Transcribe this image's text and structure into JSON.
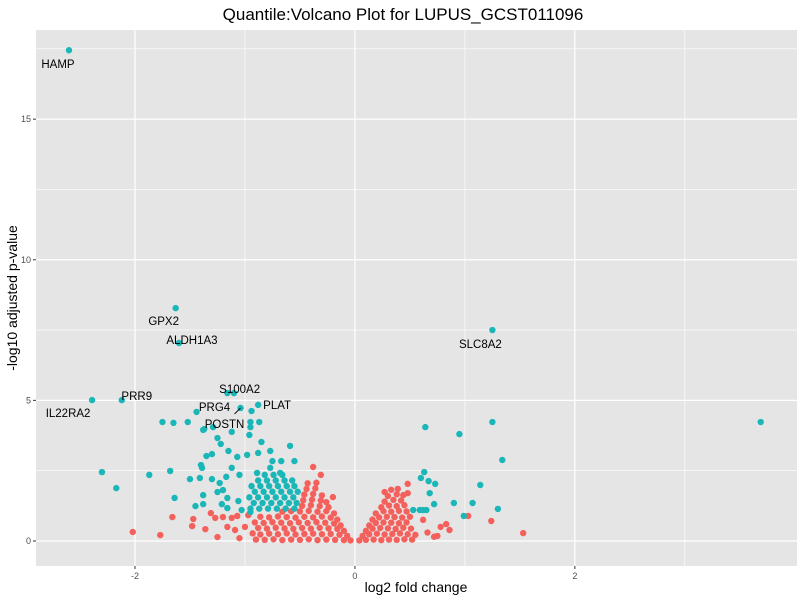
{
  "chart_data": {
    "type": "scatter",
    "title": "Quantile:Volcano Plot for LUPUS_GCST011096",
    "xlabel": "log2 fold change",
    "ylabel": "-log10 adjusted p-value",
    "xlim": [
      -2.9,
      4.02
    ],
    "ylim": [
      -0.89,
      18.17
    ],
    "x_ticks": [
      "-2",
      "0",
      "2"
    ],
    "x_tick_values": [
      -2,
      0,
      2
    ],
    "y_ticks": [
      "0",
      "5",
      "10",
      "15"
    ],
    "y_tick_values": [
      0,
      5,
      10,
      15
    ],
    "grid": true,
    "legend": "none",
    "colors": {
      "not_significant": "#F4615C",
      "significant": "#1BB6B8",
      "panel": "#E5E5E5",
      "grid": "#FFFFFF"
    },
    "series": [
      {
        "color": "#F4615C",
        "points": [
          [
            -0.9,
            0.05
          ],
          [
            -0.82,
            0.04
          ],
          [
            -0.74,
            0.06
          ],
          [
            -0.66,
            0.03
          ],
          [
            -0.58,
            0.05
          ],
          [
            -0.5,
            0.04
          ],
          [
            -0.42,
            0.06
          ],
          [
            -0.34,
            0.03
          ],
          [
            -0.26,
            0.05
          ],
          [
            -0.18,
            0.04
          ],
          [
            -0.1,
            0.03
          ],
          [
            -0.04,
            0.02
          ],
          [
            0.04,
            0.02
          ],
          [
            0.1,
            0.04
          ],
          [
            0.17,
            0.05
          ],
          [
            0.24,
            0.03
          ],
          [
            0.31,
            0.05
          ],
          [
            0.38,
            0.04
          ],
          [
            0.45,
            0.06
          ],
          [
            0.52,
            0.05
          ],
          [
            -0.93,
            0.27
          ],
          [
            -0.86,
            0.23
          ],
          [
            -0.78,
            0.26
          ],
          [
            -0.7,
            0.24
          ],
          [
            -0.62,
            0.27
          ],
          [
            -0.54,
            0.23
          ],
          [
            -0.46,
            0.25
          ],
          [
            -0.38,
            0.26
          ],
          [
            -0.3,
            0.24
          ],
          [
            -0.22,
            0.25
          ],
          [
            -0.14,
            0.22
          ],
          [
            -0.07,
            0.18
          ],
          [
            0.07,
            0.18
          ],
          [
            0.13,
            0.24
          ],
          [
            0.2,
            0.26
          ],
          [
            0.27,
            0.23
          ],
          [
            0.34,
            0.25
          ],
          [
            0.41,
            0.27
          ],
          [
            0.48,
            0.24
          ],
          [
            0.55,
            0.22
          ],
          [
            -0.88,
            0.46
          ],
          [
            -0.8,
            0.44
          ],
          [
            -0.72,
            0.47
          ],
          [
            -0.64,
            0.45
          ],
          [
            -0.56,
            0.43
          ],
          [
            -0.48,
            0.46
          ],
          [
            -0.4,
            0.44
          ],
          [
            -0.32,
            0.47
          ],
          [
            -0.24,
            0.45
          ],
          [
            -0.16,
            0.43
          ],
          [
            -0.1,
            0.36
          ],
          [
            0.1,
            0.36
          ],
          [
            0.16,
            0.44
          ],
          [
            0.23,
            0.46
          ],
          [
            0.3,
            0.45
          ],
          [
            0.37,
            0.43
          ],
          [
            0.44,
            0.47
          ],
          [
            0.51,
            0.44
          ],
          [
            -0.91,
            0.66
          ],
          [
            -0.83,
            0.64
          ],
          [
            -0.75,
            0.67
          ],
          [
            -0.67,
            0.65
          ],
          [
            -0.59,
            0.63
          ],
          [
            -0.51,
            0.66
          ],
          [
            -0.43,
            0.64
          ],
          [
            -0.35,
            0.67
          ],
          [
            -0.27,
            0.65
          ],
          [
            -0.19,
            0.62
          ],
          [
            -0.13,
            0.55
          ],
          [
            0.13,
            0.55
          ],
          [
            0.19,
            0.64
          ],
          [
            0.26,
            0.66
          ],
          [
            0.33,
            0.65
          ],
          [
            0.4,
            0.63
          ],
          [
            0.47,
            0.66
          ],
          [
            -0.86,
            0.86
          ],
          [
            -0.78,
            0.84
          ],
          [
            -0.7,
            0.87
          ],
          [
            -0.62,
            0.85
          ],
          [
            -0.54,
            0.83
          ],
          [
            -0.46,
            0.86
          ],
          [
            -0.38,
            0.84
          ],
          [
            -0.3,
            0.87
          ],
          [
            -0.22,
            0.83
          ],
          [
            -0.16,
            0.76
          ],
          [
            0.16,
            0.76
          ],
          [
            0.22,
            0.84
          ],
          [
            0.29,
            0.86
          ],
          [
            0.36,
            0.85
          ],
          [
            0.43,
            0.83
          ],
          [
            0.5,
            0.86
          ],
          [
            -0.66,
            1.04
          ],
          [
            -0.58,
            1.06
          ],
          [
            -0.5,
            1.05
          ],
          [
            -0.42,
            1.07
          ],
          [
            -0.34,
            1.04
          ],
          [
            -0.26,
            1.06
          ],
          [
            -0.19,
            0.98
          ],
          [
            0.19,
            0.98
          ],
          [
            0.26,
            1.06
          ],
          [
            0.33,
            1.04
          ],
          [
            0.4,
            1.07
          ],
          [
            0.47,
            1.05
          ],
          [
            -0.48,
            1.25
          ],
          [
            -0.4,
            1.27
          ],
          [
            -0.32,
            1.24
          ],
          [
            -0.24,
            1.2
          ],
          [
            0.24,
            1.2
          ],
          [
            0.31,
            1.26
          ],
          [
            0.38,
            1.24
          ],
          [
            0.45,
            1.27
          ],
          [
            -0.47,
            1.45
          ],
          [
            -0.39,
            1.47
          ],
          [
            -0.31,
            1.44
          ],
          [
            -0.26,
            1.38
          ],
          [
            0.27,
            1.4
          ],
          [
            0.35,
            1.46
          ],
          [
            0.42,
            1.44
          ],
          [
            -0.46,
            1.65
          ],
          [
            -0.38,
            1.67
          ],
          [
            -0.3,
            1.62
          ],
          [
            0.3,
            1.6
          ],
          [
            0.38,
            1.66
          ],
          [
            -0.44,
            1.85
          ],
          [
            -0.36,
            1.87
          ],
          [
            0.33,
            1.82
          ],
          [
            -0.43,
            2.05
          ],
          [
            -0.35,
            2.07
          ],
          [
            -0.38,
            2.63
          ],
          [
            -0.31,
            2.35
          ],
          [
            -0.2,
            1.56
          ],
          [
            0.27,
            1.74
          ],
          [
            0.39,
            1.85
          ],
          [
            0.48,
            2.03
          ],
          [
            0.44,
            1.63
          ],
          [
            0.48,
            1.7
          ],
          [
            1.03,
            0.89
          ],
          [
            1.24,
            0.71
          ],
          [
            1.53,
            0.28
          ],
          [
            0.83,
            0.6
          ],
          [
            0.86,
            0.39
          ],
          [
            0.75,
            0.18
          ],
          [
            0.72,
            0.15
          ],
          [
            0.78,
            0.5
          ],
          [
            0.66,
            0.3
          ],
          [
            0.62,
            0.75
          ],
          [
            -1.48,
            0.53
          ],
          [
            -1.25,
            0.14
          ],
          [
            -1.31,
            0.99
          ],
          [
            -1.27,
            0.82
          ],
          [
            -1.16,
            0.5
          ],
          [
            -1.05,
            0.1
          ],
          [
            -1.09,
            0.39
          ],
          [
            -1.0,
            0.5
          ],
          [
            -1.2,
            0.85
          ],
          [
            -1.12,
            0.82
          ],
          [
            -1.07,
            0.89
          ],
          [
            -0.97,
            0.92
          ],
          [
            -2.02,
            0.32
          ],
          [
            -1.77,
            0.21
          ],
          [
            -1.66,
            0.85
          ],
          [
            -1.47,
            0.78
          ],
          [
            -1.36,
            0.42
          ]
        ]
      },
      {
        "color": "#1BB6B8",
        "points": [
          [
            -0.95,
            1.15
          ],
          [
            -0.87,
            1.15
          ],
          [
            -0.79,
            1.15
          ],
          [
            -0.71,
            1.15
          ],
          [
            -0.63,
            1.15
          ],
          [
            -0.55,
            1.15
          ],
          [
            -0.92,
            1.35
          ],
          [
            -0.84,
            1.35
          ],
          [
            -0.76,
            1.35
          ],
          [
            -0.68,
            1.35
          ],
          [
            -0.6,
            1.35
          ],
          [
            -0.53,
            1.35
          ],
          [
            -0.96,
            1.55
          ],
          [
            -0.88,
            1.55
          ],
          [
            -0.8,
            1.55
          ],
          [
            -0.72,
            1.55
          ],
          [
            -0.64,
            1.55
          ],
          [
            -0.56,
            1.55
          ],
          [
            -0.91,
            1.75
          ],
          [
            -0.83,
            1.75
          ],
          [
            -0.75,
            1.75
          ],
          [
            -0.67,
            1.75
          ],
          [
            -0.59,
            1.75
          ],
          [
            -0.52,
            1.75
          ],
          [
            -0.94,
            1.95
          ],
          [
            -0.86,
            1.95
          ],
          [
            -0.78,
            1.95
          ],
          [
            -0.7,
            1.95
          ],
          [
            -0.62,
            1.95
          ],
          [
            -0.55,
            1.95
          ],
          [
            -0.88,
            2.15
          ],
          [
            -0.8,
            2.15
          ],
          [
            -0.72,
            2.15
          ],
          [
            -0.64,
            2.15
          ],
          [
            -0.57,
            2.15
          ],
          [
            -0.82,
            2.35
          ],
          [
            -0.74,
            2.35
          ],
          [
            -0.66,
            2.35
          ],
          [
            -1.38,
            3.95
          ],
          [
            -1.12,
            3.88
          ],
          [
            -0.96,
            3.77
          ],
          [
            -1.25,
            3.66
          ],
          [
            -1.22,
            3.45
          ],
          [
            -0.85,
            3.52
          ],
          [
            -0.59,
            3.38
          ],
          [
            -1.35,
            3.02
          ],
          [
            -1.3,
            3.09
          ],
          [
            -1.15,
            3.2
          ],
          [
            -1.07,
            2.99
          ],
          [
            -0.98,
            3.06
          ],
          [
            -0.88,
            3.13
          ],
          [
            -0.77,
            3.2
          ],
          [
            -0.75,
            2.84
          ],
          [
            -0.67,
            2.84
          ],
          [
            -0.55,
            2.84
          ],
          [
            -1.4,
            2.7
          ],
          [
            -1.12,
            2.6
          ],
          [
            -0.77,
            2.6
          ],
          [
            -0.89,
            2.42
          ],
          [
            -0.68,
            2.42
          ],
          [
            -1.41,
            2.24
          ],
          [
            -1.3,
            2.2
          ],
          [
            -1.17,
            2.28
          ],
          [
            -1.05,
            2.35
          ],
          [
            -1.23,
            2.06
          ],
          [
            -1.25,
            1.74
          ],
          [
            -1.2,
            1.81
          ],
          [
            -1.38,
            1.63
          ],
          [
            -1.16,
            1.53
          ],
          [
            -1.06,
            1.42
          ],
          [
            -1.21,
            1.31
          ],
          [
            -1.45,
            1.24
          ],
          [
            -1.38,
            1.31
          ],
          [
            -1.16,
            1.17
          ],
          [
            -1.03,
            1.1
          ],
          [
            -0.95,
            1.03
          ],
          [
            -2.3,
            2.45
          ],
          [
            -2.17,
            1.88
          ],
          [
            -1.87,
            2.35
          ],
          [
            -1.68,
            2.49
          ],
          [
            -1.64,
            1.53
          ],
          [
            -1.5,
            2.2
          ],
          [
            -1.39,
            2.6
          ],
          [
            -1.75,
            4.23
          ],
          [
            -1.65,
            4.2
          ],
          [
            -1.52,
            4.23
          ],
          [
            -1.37,
            3.98
          ],
          [
            -1.29,
            4.05
          ],
          [
            -0.95,
            4.23
          ],
          [
            -0.87,
            4.23
          ],
          [
            -0.94,
            4.62
          ],
          [
            -0.95,
            4.05
          ],
          [
            0.95,
            3.8
          ],
          [
            1.34,
            2.88
          ],
          [
            0.63,
            2.45
          ],
          [
            0.6,
            2.24
          ],
          [
            0.67,
            2.13
          ],
          [
            0.73,
            2.03
          ],
          [
            1.14,
            1.99
          ],
          [
            0.68,
            1.7
          ],
          [
            0.9,
            1.35
          ],
          [
            1.07,
            1.35
          ],
          [
            0.72,
            1.31
          ],
          [
            0.53,
            1.1
          ],
          [
            0.59,
            1.1
          ],
          [
            0.62,
            1.1
          ],
          [
            0.65,
            1.1
          ],
          [
            1.3,
            1.14
          ],
          [
            0.99,
            0.89
          ],
          [
            0.64,
            4.05
          ],
          [
            1.25,
            4.23
          ],
          [
            3.69,
            4.23
          ],
          [
            -2.6,
            17.45
          ],
          [
            -1.63,
            8.28
          ],
          [
            -1.6,
            7.04
          ],
          [
            1.25,
            7.5
          ],
          [
            -1.16,
            5.26
          ],
          [
            -1.1,
            5.26
          ],
          [
            -2.12,
            5.01
          ],
          [
            -2.39,
            5.01
          ],
          [
            -0.88,
            4.84
          ],
          [
            -1.44,
            4.59
          ],
          [
            -1.04,
            4.73
          ]
        ]
      }
    ],
    "annotations": [
      {
        "label": "HAMP",
        "x": -2.6,
        "y": 17.45
      },
      {
        "label": "GPX2",
        "x": -1.63,
        "y": 8.28
      },
      {
        "label": "ALDH1A3",
        "x": -1.6,
        "y": 7.04
      },
      {
        "label": "SLC8A2",
        "x": 1.25,
        "y": 7.5
      },
      {
        "label": "S100A2",
        "x": -1.13,
        "y": 5.26
      },
      {
        "label": "PRR9",
        "x": -2.12,
        "y": 5.01
      },
      {
        "label": "IL22RA2",
        "x": -2.39,
        "y": 5.01
      },
      {
        "label": "PLAT",
        "x": -0.88,
        "y": 4.84
      },
      {
        "label": "PRG4",
        "x": -1.44,
        "y": 4.59
      },
      {
        "label": "POSTN",
        "x": -1.04,
        "y": 4.73
      }
    ]
  }
}
